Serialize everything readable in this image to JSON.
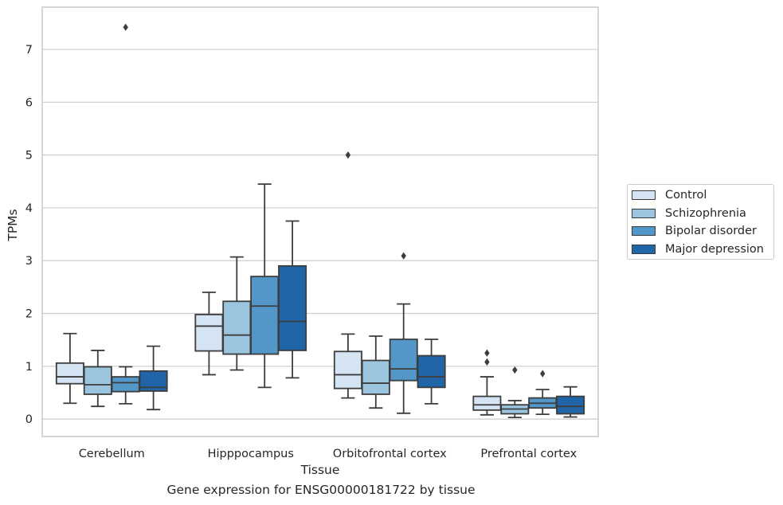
{
  "chart_data": {
    "type": "box",
    "caption": "Gene expression for ENSG00000181722 by tissue",
    "xlabel": "Tissue",
    "ylabel": "TPMs",
    "ylim": [
      -0.33,
      7.8
    ],
    "yticks": [
      0,
      1,
      2,
      3,
      4,
      5,
      6,
      7
    ],
    "grid": "horizontal",
    "legend_position": "right",
    "categories": [
      "Cerebellum",
      "Hipppocampus",
      "Orbitofrontal cortex",
      "Prefrontal cortex"
    ],
    "series": [
      {
        "name": "Control",
        "color": "#d4e4f3",
        "boxes": [
          {
            "whislo": 0.3,
            "q1": 0.67,
            "med": 0.8,
            "q3": 1.06,
            "whishi": 1.62,
            "fliers": []
          },
          {
            "whislo": 0.84,
            "q1": 1.29,
            "med": 1.76,
            "q3": 1.98,
            "whishi": 2.4,
            "fliers": []
          },
          {
            "whislo": 0.4,
            "q1": 0.58,
            "med": 0.84,
            "q3": 1.28,
            "whishi": 1.61,
            "fliers": [
              5.0
            ]
          },
          {
            "whislo": 0.08,
            "q1": 0.17,
            "med": 0.27,
            "q3": 0.43,
            "whishi": 0.8,
            "fliers": [
              1.08,
              1.25
            ]
          }
        ]
      },
      {
        "name": "Schizophrenia",
        "color": "#9bc5df",
        "boxes": [
          {
            "whislo": 0.24,
            "q1": 0.47,
            "med": 0.65,
            "q3": 0.99,
            "whishi": 1.3,
            "fliers": []
          },
          {
            "whislo": 0.93,
            "q1": 1.23,
            "med": 1.59,
            "q3": 2.23,
            "whishi": 3.07,
            "fliers": []
          },
          {
            "whislo": 0.21,
            "q1": 0.47,
            "med": 0.68,
            "q3": 1.11,
            "whishi": 1.57,
            "fliers": []
          },
          {
            "whislo": 0.03,
            "q1": 0.1,
            "med": 0.19,
            "q3": 0.27,
            "whishi": 0.35,
            "fliers": [
              0.93
            ]
          }
        ]
      },
      {
        "name": "Bipolar disorder",
        "color": "#5297c7",
        "boxes": [
          {
            "whislo": 0.29,
            "q1": 0.52,
            "med": 0.69,
            "q3": 0.8,
            "whishi": 0.99,
            "fliers": [
              7.42
            ]
          },
          {
            "whislo": 0.6,
            "q1": 1.23,
            "med": 2.14,
            "q3": 2.7,
            "whishi": 4.45,
            "fliers": []
          },
          {
            "whislo": 0.11,
            "q1": 0.73,
            "med": 0.95,
            "q3": 1.51,
            "whishi": 2.18,
            "fliers": [
              3.09
            ]
          },
          {
            "whislo": 0.09,
            "q1": 0.21,
            "med": 0.3,
            "q3": 0.4,
            "whishi": 0.56,
            "fliers": [
              0.86
            ]
          }
        ]
      },
      {
        "name": "Major depression",
        "color": "#2065a8",
        "boxes": [
          {
            "whislo": 0.18,
            "q1": 0.53,
            "med": 0.6,
            "q3": 0.91,
            "whishi": 1.38,
            "fliers": []
          },
          {
            "whislo": 0.78,
            "q1": 1.3,
            "med": 1.85,
            "q3": 2.9,
            "whishi": 3.75,
            "fliers": []
          },
          {
            "whislo": 0.29,
            "q1": 0.6,
            "med": 0.8,
            "q3": 1.2,
            "whishi": 1.51,
            "fliers": []
          },
          {
            "whislo": 0.04,
            "q1": 0.1,
            "med": 0.24,
            "q3": 0.43,
            "whishi": 0.61,
            "fliers": []
          }
        ]
      }
    ]
  }
}
